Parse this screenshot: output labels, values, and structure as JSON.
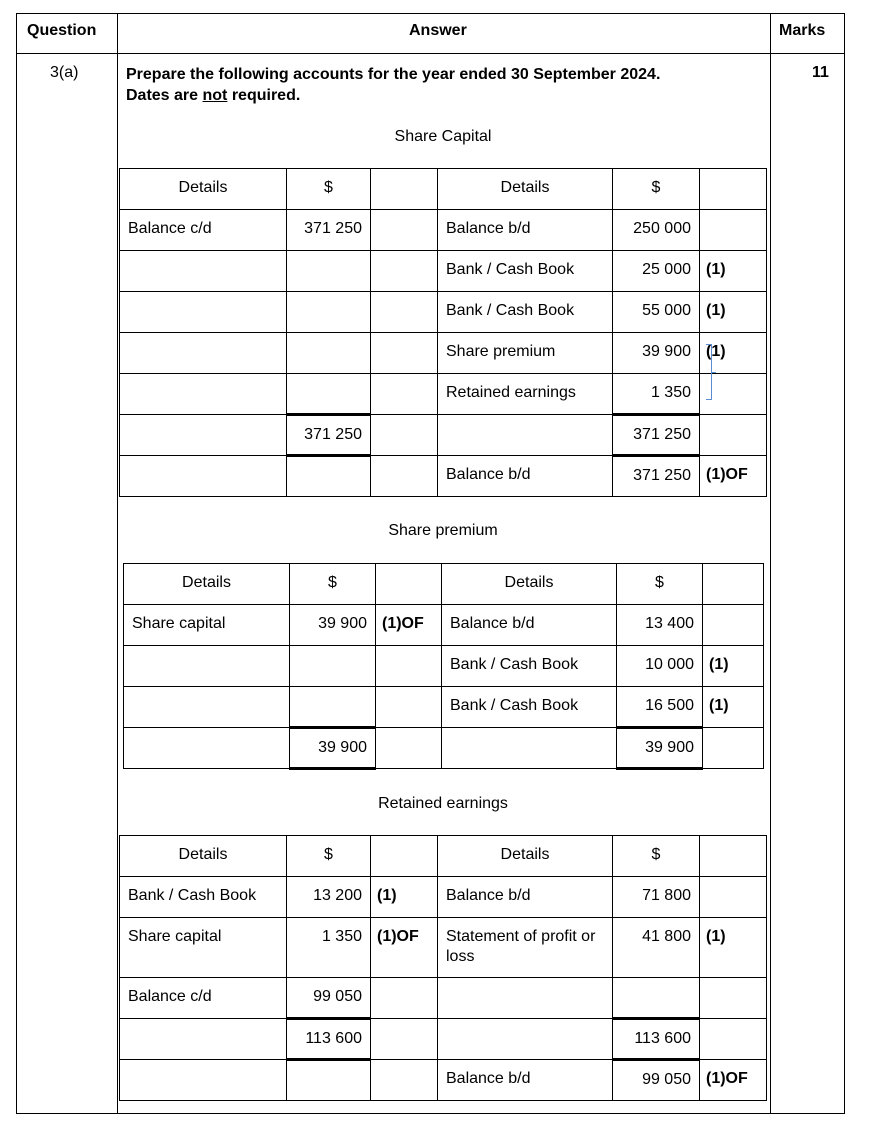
{
  "header": {
    "question": "Question",
    "answer": "Answer",
    "marks": "Marks"
  },
  "question_number": "3(a)",
  "total_marks": "11",
  "instruction": {
    "line1": "Prepare the following accounts for the year ended 30 September 2024.",
    "line2_pre": "Dates are ",
    "line2_underlined": "not",
    "line2_post": " required."
  },
  "accounts": [
    {
      "title": "Share Capital",
      "columns": [
        "Details",
        "$",
        "",
        "Details",
        "$",
        ""
      ],
      "rows": [
        {
          "cells": [
            "Balance c/d",
            "371 250",
            "",
            "Balance b/d",
            "250 000",
            ""
          ]
        },
        {
          "cells": [
            "",
            "",
            "",
            "Bank / Cash Book",
            "25 000",
            "(1)"
          ]
        },
        {
          "cells": [
            "",
            "",
            "",
            "Bank / Cash Book",
            "55 000",
            "(1)"
          ]
        },
        {
          "cells": [
            "",
            "",
            "",
            "Share premium",
            "39 900",
            "(1)"
          ]
        },
        {
          "cells": [
            "",
            "",
            "",
            "Retained earnings",
            "1 350",
            ""
          ]
        },
        {
          "cells": [
            "",
            "371 250",
            "",
            "",
            "371 250",
            ""
          ],
          "total": true
        },
        {
          "cells": [
            "",
            "",
            "",
            "Balance b/d",
            "371 250",
            "(1)OF"
          ]
        }
      ]
    },
    {
      "title": "Share premium",
      "columns": [
        "Details",
        "$",
        "",
        "Details",
        "$",
        ""
      ],
      "rows": [
        {
          "cells": [
            "Share capital",
            "39 900",
            "(1)OF",
            "Balance b/d",
            "13 400",
            ""
          ]
        },
        {
          "cells": [
            "",
            "",
            "",
            "Bank / Cash Book",
            "10 000",
            "(1)"
          ]
        },
        {
          "cells": [
            "",
            "",
            "",
            "Bank / Cash Book",
            "16 500",
            "(1)"
          ]
        },
        {
          "cells": [
            "",
            "39 900",
            "",
            "",
            "39 900",
            ""
          ],
          "total": true
        }
      ]
    },
    {
      "title": "Retained earnings",
      "columns": [
        "Details",
        "$",
        "",
        "Details",
        "$",
        ""
      ],
      "rows": [
        {
          "cells": [
            "Bank / Cash Book",
            "13 200",
            "(1)",
            "Balance b/d",
            "71 800",
            ""
          ]
        },
        {
          "cells": [
            "Share capital",
            "1 350",
            "(1)OF",
            "Statement of profit or loss",
            "41 800",
            "(1)"
          ],
          "tall": true
        },
        {
          "cells": [
            "Balance c/d",
            "99 050",
            "",
            "",
            "",
            ""
          ]
        },
        {
          "cells": [
            "",
            "113 600",
            "",
            "",
            "113 600",
            ""
          ],
          "total": true
        },
        {
          "cells": [
            "",
            "",
            "",
            "Balance b/d",
            "99 050",
            "(1)OF"
          ]
        }
      ]
    }
  ],
  "colors": {
    "border": "#000000",
    "bracket": "#5b8bd0"
  }
}
